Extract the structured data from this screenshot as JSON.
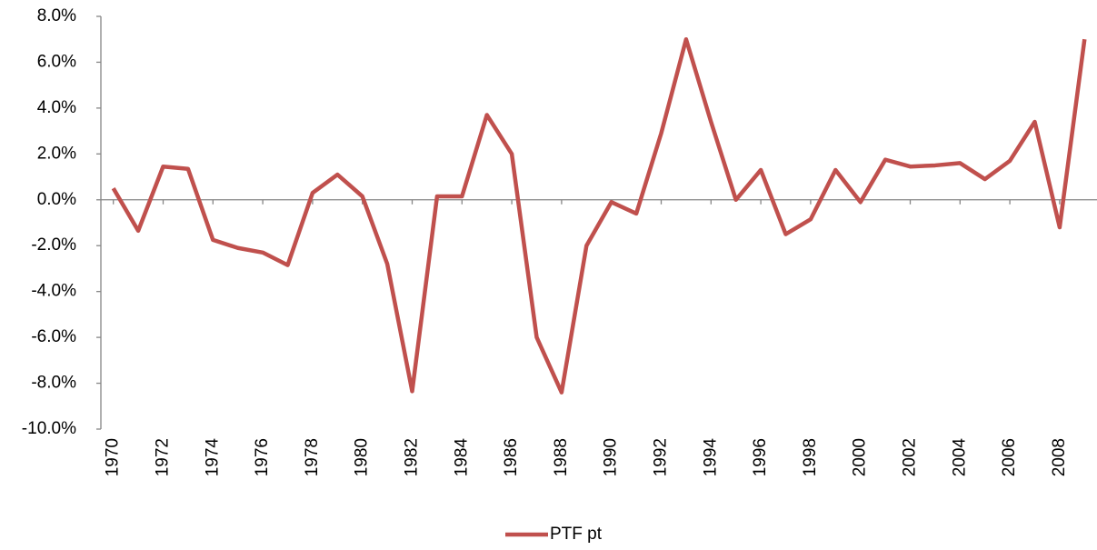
{
  "chart_data": {
    "type": "line",
    "x": [
      1970,
      1971,
      1972,
      1973,
      1974,
      1975,
      1976,
      1977,
      1978,
      1979,
      1980,
      1981,
      1982,
      1983,
      1984,
      1985,
      1986,
      1987,
      1988,
      1989,
      1990,
      1991,
      1992,
      1993,
      1994,
      1995,
      1996,
      1997,
      1998,
      1999,
      2000,
      2001,
      2002,
      2003,
      2004,
      2005,
      2006,
      2007,
      2008,
      2009
    ],
    "series": [
      {
        "name": "PTF pt",
        "color": "#c0504d",
        "values": [
          0.5,
          -1.35,
          1.45,
          1.35,
          -1.75,
          -2.1,
          -2.3,
          -2.85,
          0.3,
          1.1,
          0.15,
          -2.8,
          -8.35,
          0.15,
          0.15,
          3.7,
          2.0,
          -6.0,
          -8.4,
          -2.0,
          -0.1,
          -0.6,
          2.9,
          7.0,
          3.4,
          0.0,
          1.3,
          -1.5,
          -0.85,
          1.3,
          -0.1,
          1.75,
          1.45,
          1.5,
          1.6,
          0.9,
          1.7,
          3.4,
          -1.2,
          7.0
        ]
      }
    ],
    "xlim": [
      1969.5,
      2009.5
    ],
    "xticks": [
      1970,
      1972,
      1974,
      1976,
      1978,
      1980,
      1982,
      1984,
      1986,
      1988,
      1990,
      1992,
      1994,
      1996,
      1998,
      2000,
      2002,
      2004,
      2006,
      2008
    ],
    "ylim": [
      -10,
      8
    ],
    "yticks": [
      {
        "value": -10,
        "label": "-10.0%"
      },
      {
        "value": -8,
        "label": "-8.0%"
      },
      {
        "value": -6,
        "label": "-6.0%"
      },
      {
        "value": -4,
        "label": "-4.0%"
      },
      {
        "value": -2,
        "label": "-2.0%"
      },
      {
        "value": 0,
        "label": "0.0%"
      },
      {
        "value": 2,
        "label": "2.0%"
      },
      {
        "value": 4,
        "label": "4.0%"
      },
      {
        "value": 6,
        "label": "6.0%"
      },
      {
        "value": 8,
        "label": "8.0%"
      }
    ],
    "grid": false,
    "legend": "bottom"
  }
}
